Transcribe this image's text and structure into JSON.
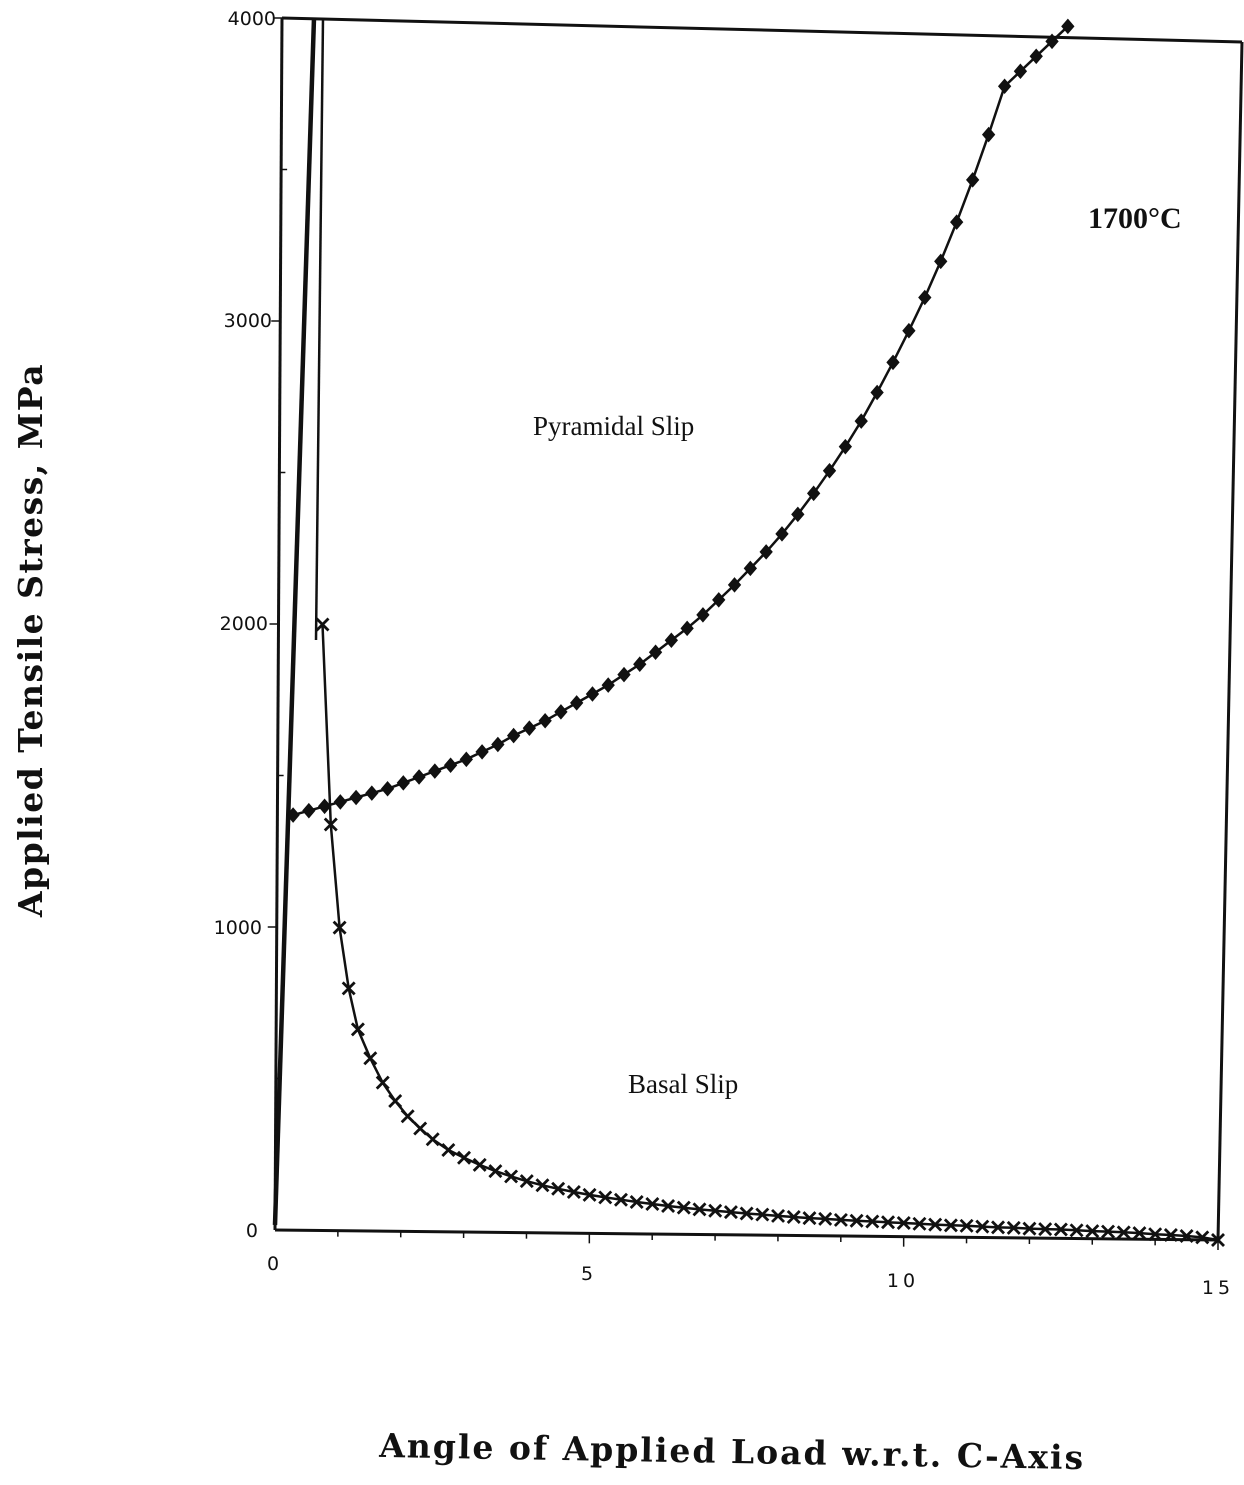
{
  "chart_data": {
    "type": "line",
    "xlabel": "Angle of Applied Load w.r.t. C-Axis",
    "ylabel": "Applied Tensile Stress, MPa",
    "xlim": [
      0,
      15
    ],
    "ylim": [
      0,
      4000
    ],
    "x_ticks": [
      "0",
      "5",
      "10",
      "15"
    ],
    "y_ticks": [
      "0",
      "1000",
      "2000",
      "3000",
      "4000"
    ],
    "annotations": {
      "temperature": "1700°C",
      "pyramidal": "Pyramidal Slip",
      "basal": "Basal Slip"
    },
    "series": [
      {
        "marker": "diamond",
        "x": [
          0.25,
          0.5,
          0.75,
          1.0,
          1.25,
          1.5,
          1.75,
          2.0,
          2.25,
          2.5,
          2.75,
          3.0,
          3.25,
          3.5,
          3.75,
          4.0,
          4.25,
          4.5,
          4.75,
          5.0,
          5.25,
          5.5,
          5.75,
          6.0,
          6.25,
          6.5,
          6.75,
          7.0,
          7.25,
          7.5,
          7.75,
          8.0,
          8.25,
          8.5,
          8.75,
          9.0,
          9.25,
          9.5,
          9.75,
          10.0,
          10.25,
          10.5,
          10.75,
          11.0,
          11.25,
          11.5,
          11.75,
          12.0,
          12.25,
          12.5
        ],
        "y": [
          1370,
          1385,
          1400,
          1415,
          1430,
          1445,
          1460,
          1480,
          1500,
          1520,
          1540,
          1560,
          1585,
          1610,
          1640,
          1665,
          1690,
          1720,
          1750,
          1780,
          1810,
          1845,
          1880,
          1920,
          1960,
          2000,
          2045,
          2095,
          2145,
          2200,
          2255,
          2315,
          2380,
          2450,
          2525,
          2605,
          2690,
          2785,
          2885,
          2990,
          3100,
          3220,
          3350,
          3490,
          3640,
          3800,
          3850,
          3900,
          3950,
          4000
        ]
      },
      {
        "marker": "x",
        "x": [
          0.7,
          0.85,
          1.0,
          1.15,
          1.3,
          1.5,
          1.7,
          1.9,
          2.1,
          2.3,
          2.5,
          2.75,
          3.0,
          3.25,
          3.5,
          3.75,
          4.0,
          4.25,
          4.5,
          4.75,
          5.0,
          5.25,
          5.5,
          5.75,
          6.0,
          6.25,
          6.5,
          6.75,
          7.0,
          7.25,
          7.5,
          7.75,
          8.0,
          8.25,
          8.5,
          8.75,
          9.0,
          9.25,
          9.5,
          9.75,
          10.0,
          10.25,
          10.5,
          10.75,
          11.0,
          11.25,
          11.5,
          11.75,
          12.0,
          12.25,
          12.5,
          12.75,
          13.0,
          13.25,
          13.5,
          13.75,
          14.0,
          14.25,
          14.5,
          14.75,
          15.0
        ],
        "y": [
          2000,
          1340,
          1000,
          800,
          665,
          570,
          490,
          430,
          380,
          340,
          305,
          270,
          245,
          222,
          202,
          185,
          170,
          157,
          146,
          136,
          127,
          119,
          112,
          105,
          99,
          93,
          88,
          83,
          79,
          75,
          71,
          68,
          64,
          61,
          58,
          56,
          53,
          51,
          49,
          47,
          45,
          43,
          41,
          39,
          38,
          36,
          34,
          33,
          31,
          30,
          29,
          27,
          25,
          24,
          22,
          20,
          17,
          15,
          12,
          8,
          0
        ]
      }
    ]
  }
}
